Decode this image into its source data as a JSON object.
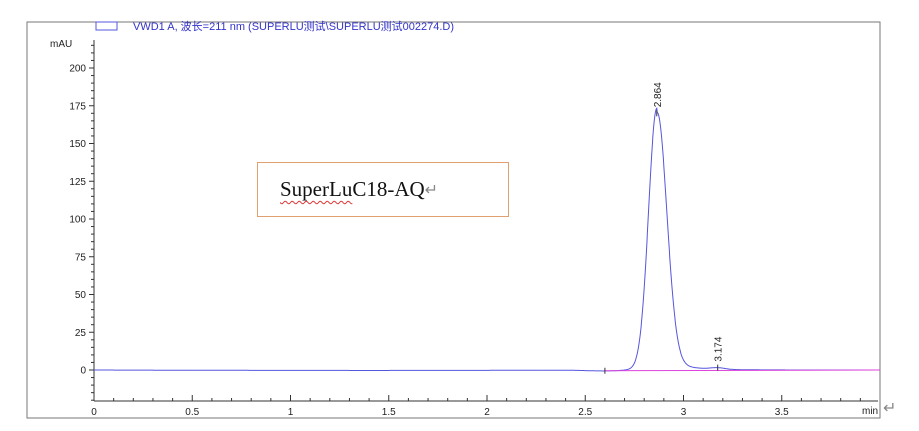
{
  "chart_data": {
    "type": "line",
    "legend": "VWD1 A, 波长=211 nm (SUPERLU测试\\SUPERLU测试002274.D)",
    "legend_placement": "top",
    "ylabel": "mAU",
    "xlabel": "min",
    "xlim": [
      0,
      4.0
    ],
    "ylim": [
      -20,
      220
    ],
    "x_ticks": [
      "0",
      "0.5",
      "1",
      "1.5",
      "2",
      "2.5",
      "3",
      "3.5"
    ],
    "y_ticks": [
      "0",
      "25",
      "50",
      "75",
      "100",
      "125",
      "150",
      "175",
      "200"
    ],
    "grid": false,
    "series_color": "#5555dd",
    "baseline_color": "#dd44dd",
    "peaks": [
      {
        "label": "2.864",
        "rt": 2.864,
        "height": 170
      },
      {
        "label": "3.174",
        "rt": 3.174,
        "height": 1
      }
    ],
    "integration_baseline": {
      "x": [
        2.6,
        4.0
      ],
      "y": [
        -0.5,
        0
      ]
    }
  },
  "annotation": {
    "brand": "SuperLu",
    "rest": " C18-AQ",
    "mark": "↵"
  },
  "return_mark": "↵"
}
